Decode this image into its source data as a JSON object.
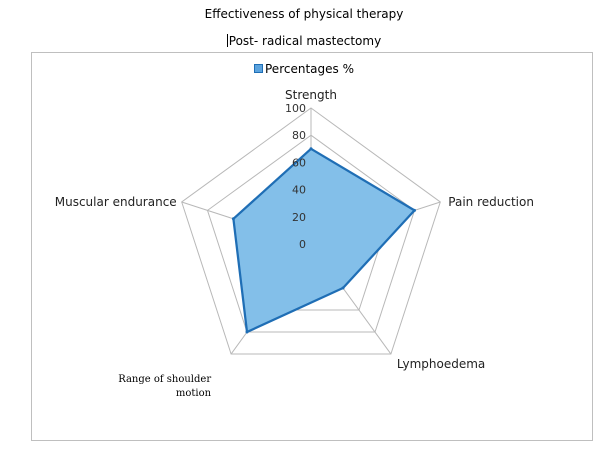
{
  "chart_data": {
    "type": "radar",
    "title": "Effectiveness of physical therapy",
    "subtitle": "Post- radical mastectomy",
    "legend": [
      "Percentages %"
    ],
    "categories": [
      "Strength",
      "Pain reduction",
      "Lymphoedema",
      "Range of shoulder motion",
      "Muscular endurance"
    ],
    "category_lines": [
      [
        "Strength"
      ],
      [
        "Pain reduction"
      ],
      [
        "Lymphoedema"
      ],
      [
        "Range of shoulder",
        "motion"
      ],
      [
        "Muscular endurance"
      ]
    ],
    "series": [
      {
        "name": "Percentages %",
        "values": [
          70,
          80,
          40,
          80,
          60
        ]
      }
    ],
    "rlim": [
      0,
      100
    ],
    "ticks": [
      0,
      20,
      40,
      60,
      80,
      100
    ],
    "colors": {
      "fill": "#83bfe9",
      "stroke": "#1f6eb5",
      "grid": "#b8b8b8"
    }
  }
}
